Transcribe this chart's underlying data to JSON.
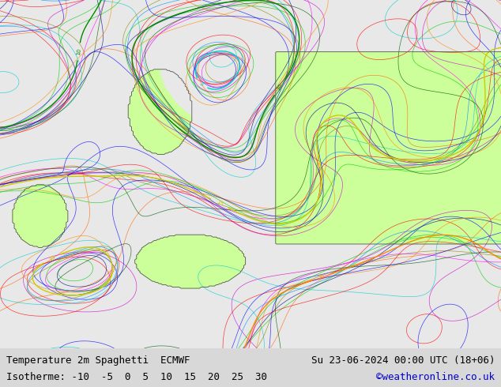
{
  "title_left": "Temperature 2m Spaghetti  ECMWF",
  "title_right": "Su 23-06-2024 00:00 UTC (18+06)",
  "isotherme_label": "Isotherme: -10  -5  0  5  10  15  20  25  30",
  "credit": "©weatheronline.co.uk",
  "bg_color": "#d8d8d8",
  "map_bg_color_land_warm": "#ccff99",
  "map_bg_color_land_cold": "#aaaaaa",
  "map_bg_color_sea": "#e8e8e8",
  "bottom_bar_color": "#d8d8d8",
  "title_fontsize": 9,
  "credit_color": "#0000cc",
  "fig_width": 6.34,
  "fig_height": 4.9,
  "dpi": 100,
  "levels": [
    -10,
    -5,
    0,
    5,
    10,
    15,
    20,
    25,
    30
  ],
  "isotherm_colors": [
    "#800080",
    "#0000ff",
    "#00aaff",
    "#00cccc",
    "#008800",
    "#cccc00",
    "#ff8800",
    "#ff0000",
    "#cc0000"
  ],
  "member_colors": [
    "#ff0000",
    "#0000ff",
    "#00cc00",
    "#ff6600",
    "#cc00cc",
    "#00cccc",
    "#888800",
    "#ff00ff",
    "#005500",
    "#000088",
    "#ff8800",
    "#0088ff"
  ],
  "num_members": 15
}
